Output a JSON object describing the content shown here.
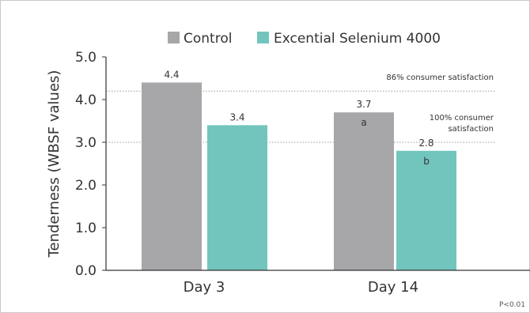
{
  "chart_data": {
    "type": "bar",
    "categories": [
      "Day 3",
      "Day 14"
    ],
    "series": [
      {
        "name": "Control",
        "values": [
          4.4,
          3.7
        ],
        "labels": [
          "4.4",
          "3.7"
        ],
        "sig": [
          "",
          "a"
        ],
        "color": "#a7a7a9"
      },
      {
        "name": "Excential Selenium 4000",
        "values": [
          3.4,
          2.8
        ],
        "labels": [
          "3.4",
          "2.8"
        ],
        "sig": [
          "",
          "b"
        ],
        "color": "#72c5bd"
      }
    ],
    "ylabel": "Tenderness (WBSF values)",
    "ylim": [
      0,
      5
    ],
    "yticks": [
      "0.0",
      "1.0",
      "2.0",
      "3.0",
      "4.0",
      "5.0"
    ],
    "ytick_values": [
      0,
      1,
      2,
      3,
      4,
      5
    ],
    "reference_lines": [
      {
        "value": 4.2,
        "label_lines": [
          "86% consumer satisfaction"
        ]
      },
      {
        "value": 3.0,
        "label_lines": [
          "100% consumer",
          "satisfaction"
        ]
      }
    ],
    "legend_position": "top",
    "footnote": "P<0.01",
    "grid": false
  },
  "colors": {
    "control": "#a7a7a9",
    "selenium": "#72c5bd",
    "axis": "#333333",
    "refline": "#999999",
    "frame": "#c8c8c8"
  }
}
